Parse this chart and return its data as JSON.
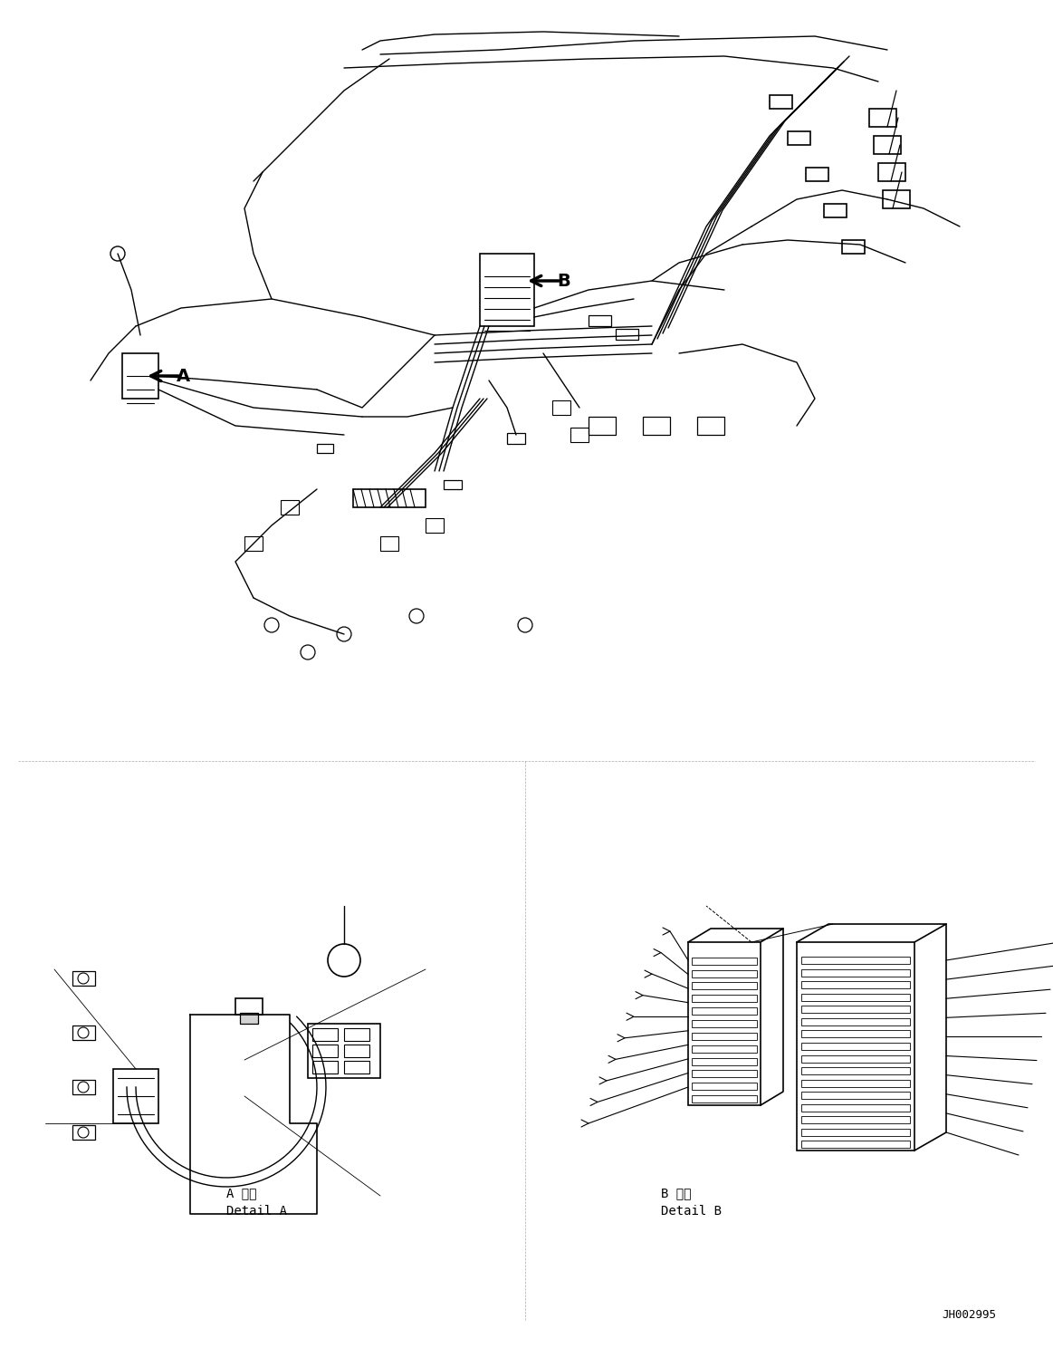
{
  "background_color": "#ffffff",
  "line_color": "#000000",
  "figure_width": 11.63,
  "figure_height": 14.88,
  "part_number": "JH002995",
  "label_a": "A",
  "label_b": "B",
  "detail_a_jp": "A 詳細",
  "detail_a_en": "Detail A",
  "detail_b_jp": "B 詳細",
  "detail_b_en": "Detail B",
  "font_size_label": 14,
  "font_size_detail": 9,
  "font_size_partnum": 9
}
